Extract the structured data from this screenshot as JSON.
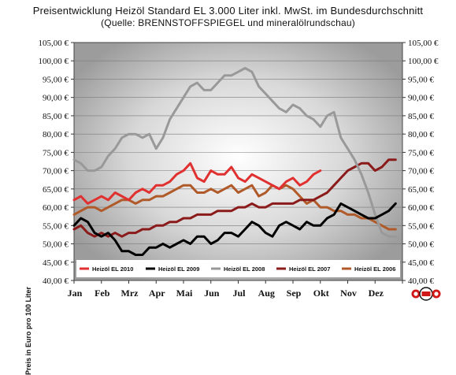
{
  "header": {
    "title": "Preisentwicklung Heizöl Standard EL 3.000 Liter inkl. MwSt. im Bundesdurchschnitt",
    "subtitle": "(Quelle: BRENNSTOFFSPIEGEL und mineralölrundschau)"
  },
  "chart_data": {
    "type": "line",
    "title": "Preisentwicklung Heizöl Standard EL 3.000 Liter inkl. MwSt. im Bundesdurchschnitt",
    "subtitle": "(Quelle: BRENNSTOFFSPIEGEL und mineralölrundschau)",
    "ylabel": "Preis in Euro pro 100 Liter",
    "xlabel": "",
    "ylim": [
      40,
      105
    ],
    "y_ticks": [
      "40,00 €",
      "45,00 €",
      "50,00 €",
      "55,00 €",
      "60,00 €",
      "65,00 €",
      "70,00 €",
      "75,00 €",
      "80,00 €",
      "85,00 €",
      "90,00 €",
      "95,00 €",
      "100,00 €",
      "105,00 €"
    ],
    "y_tick_values": [
      40,
      45,
      50,
      55,
      60,
      65,
      70,
      75,
      80,
      85,
      90,
      95,
      100,
      105
    ],
    "categories": [
      "Jan",
      "Feb",
      "Mrz",
      "Apr",
      "Mai",
      "Jun",
      "Jul",
      "Aug",
      "Sep",
      "Okt",
      "Nov",
      "Dez"
    ],
    "grid": "horizontal",
    "legend_position": "bottom-inside",
    "series": [
      {
        "name": "Heizöl EL 2010",
        "color": "#e03030",
        "x": [
          0,
          0.25,
          0.5,
          0.75,
          1,
          1.25,
          1.5,
          1.75,
          2,
          2.25,
          2.5,
          2.75,
          3,
          3.25,
          3.5,
          3.75,
          4,
          4.25,
          4.5,
          4.75,
          5,
          5.25,
          5.5,
          5.75,
          6,
          6.25,
          6.5,
          6.75,
          7,
          7.25,
          7.5,
          7.75,
          8,
          8.25,
          8.5,
          8.75,
          9
        ],
        "y": [
          62,
          63,
          61,
          62,
          63,
          62,
          64,
          63,
          62,
          64,
          65,
          64,
          66,
          66,
          67,
          69,
          70,
          72,
          68,
          67,
          70,
          69,
          69,
          71,
          68,
          67,
          69,
          68,
          67,
          66,
          65,
          67,
          68,
          66,
          67,
          69,
          70
        ]
      },
      {
        "name": "Heizöl EL 2009",
        "color": "#000000",
        "x": [
          0,
          0.25,
          0.5,
          0.75,
          1,
          1.25,
          1.5,
          1.75,
          2,
          2.25,
          2.5,
          2.75,
          3,
          3.25,
          3.5,
          3.75,
          4,
          4.25,
          4.5,
          4.75,
          5,
          5.25,
          5.5,
          5.75,
          6,
          6.25,
          6.5,
          6.75,
          7,
          7.25,
          7.5,
          7.75,
          8,
          8.25,
          8.5,
          8.75,
          9,
          9.25,
          9.5,
          9.75,
          10,
          10.25,
          10.5,
          10.75,
          11,
          11.25,
          11.5,
          11.75
        ],
        "y": [
          55,
          57,
          56,
          53,
          52,
          53,
          51,
          48,
          48,
          47,
          47,
          49,
          49,
          50,
          49,
          50,
          51,
          50,
          52,
          52,
          50,
          51,
          53,
          53,
          52,
          54,
          56,
          55,
          53,
          52,
          55,
          56,
          55,
          54,
          56,
          55,
          55,
          57,
          58,
          61,
          60,
          59,
          58,
          57,
          57,
          58,
          59,
          61
        ]
      },
      {
        "name": "Heizöl EL 2008",
        "color": "#999999",
        "x": [
          0,
          0.25,
          0.5,
          0.75,
          1,
          1.25,
          1.5,
          1.75,
          2,
          2.25,
          2.5,
          2.75,
          3,
          3.25,
          3.5,
          3.75,
          4,
          4.25,
          4.5,
          4.75,
          5,
          5.25,
          5.5,
          5.75,
          6,
          6.25,
          6.5,
          6.75,
          7,
          7.25,
          7.5,
          7.75,
          8,
          8.25,
          8.5,
          8.75,
          9,
          9.25,
          9.5,
          9.75,
          10,
          10.25,
          10.5,
          10.75,
          11,
          11.25,
          11.5,
          11.75
        ],
        "y": [
          73,
          72,
          70,
          70,
          71,
          74,
          76,
          79,
          80,
          80,
          79,
          80,
          76,
          79,
          84,
          87,
          90,
          93,
          94,
          92,
          92,
          94,
          96,
          96,
          97,
          98,
          97,
          93,
          91,
          89,
          87,
          86,
          88,
          87,
          85,
          84,
          82,
          85,
          86,
          79,
          76,
          73,
          69,
          64,
          58,
          53,
          52,
          52
        ]
      },
      {
        "name": "Heizöl EL 2007",
        "color": "#8b1a1a",
        "x": [
          0,
          0.25,
          0.5,
          0.75,
          1,
          1.25,
          1.5,
          1.75,
          2,
          2.25,
          2.5,
          2.75,
          3,
          3.25,
          3.5,
          3.75,
          4,
          4.25,
          4.5,
          4.75,
          5,
          5.25,
          5.5,
          5.75,
          6,
          6.25,
          6.5,
          6.75,
          7,
          7.25,
          7.5,
          7.75,
          8,
          8.25,
          8.5,
          8.75,
          9,
          9.25,
          9.5,
          9.75,
          10,
          10.25,
          10.5,
          10.75,
          11,
          11.25,
          11.5,
          11.75
        ],
        "y": [
          54,
          55,
          53,
          52,
          53,
          52,
          53,
          52,
          53,
          53,
          54,
          54,
          55,
          55,
          56,
          56,
          57,
          57,
          58,
          58,
          58,
          59,
          59,
          59,
          60,
          60,
          61,
          60,
          60,
          61,
          61,
          61,
          61,
          62,
          62,
          62,
          63,
          64,
          66,
          68,
          70,
          71,
          72,
          72,
          70,
          71,
          73,
          73
        ]
      },
      {
        "name": "Heizöl EL 2006",
        "color": "#b05a2a",
        "x": [
          0,
          0.25,
          0.5,
          0.75,
          1,
          1.25,
          1.5,
          1.75,
          2,
          2.25,
          2.5,
          2.75,
          3,
          3.25,
          3.5,
          3.75,
          4,
          4.25,
          4.5,
          4.75,
          5,
          5.25,
          5.5,
          5.75,
          6,
          6.25,
          6.5,
          6.75,
          7,
          7.25,
          7.5,
          7.75,
          8,
          8.25,
          8.5,
          8.75,
          9,
          9.25,
          9.5,
          9.75,
          10,
          10.25,
          10.5,
          10.75,
          11,
          11.25,
          11.5,
          11.75
        ],
        "y": [
          58,
          59,
          60,
          60,
          59,
          60,
          61,
          62,
          62,
          61,
          62,
          62,
          63,
          63,
          64,
          65,
          66,
          66,
          64,
          64,
          65,
          64,
          65,
          66,
          64,
          65,
          66,
          63,
          64,
          66,
          65,
          66,
          65,
          63,
          61,
          62,
          60,
          60,
          59,
          59,
          58,
          58,
          57,
          57,
          56,
          55,
          54,
          54
        ]
      }
    ]
  },
  "logo": {
    "name": "ceo-logo"
  }
}
